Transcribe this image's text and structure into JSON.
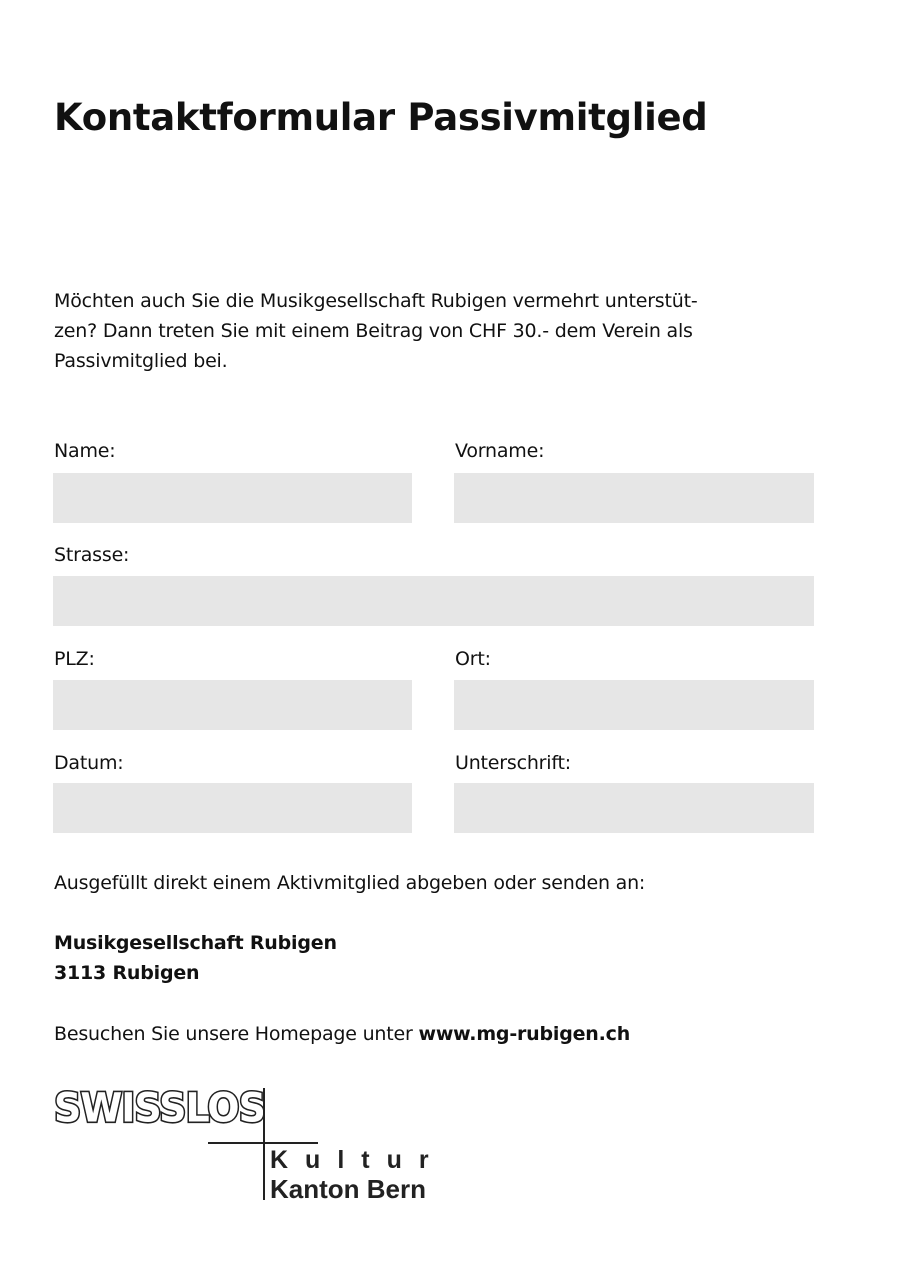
{
  "title": "Kontaktformular Passivmitglied",
  "intro": "Möchten auch Sie die Musikgesellschaft Rubigen vermehrt unterstüt-\nzen? Dann treten Sie mit einem Beitrag von CHF 30.- dem Verein als\nPassivmitglied bei.",
  "fields": {
    "name": "Name:",
    "vorname": "Vorname:",
    "strasse": "Strasse:",
    "plz": "PLZ:",
    "ort": "Ort:",
    "datum": "Datum:",
    "unterschrift": "Unterschrift:"
  },
  "instructions": "Ausgefüllt direkt einem Aktivmitglied abgeben oder senden an:",
  "address": {
    "line1": "Musikgesellschaft Rubigen",
    "line2": "3113 Rubigen"
  },
  "homepage": {
    "text": "Besuchen Sie unsere Homepage unter ",
    "url": "www.mg-rubigen.ch"
  },
  "logo": {
    "brand": "SWISSLOS",
    "line1": "Kultur",
    "line2": "Kanton Bern"
  },
  "colors": {
    "field": "#e6e6e6",
    "text": "#111111"
  }
}
